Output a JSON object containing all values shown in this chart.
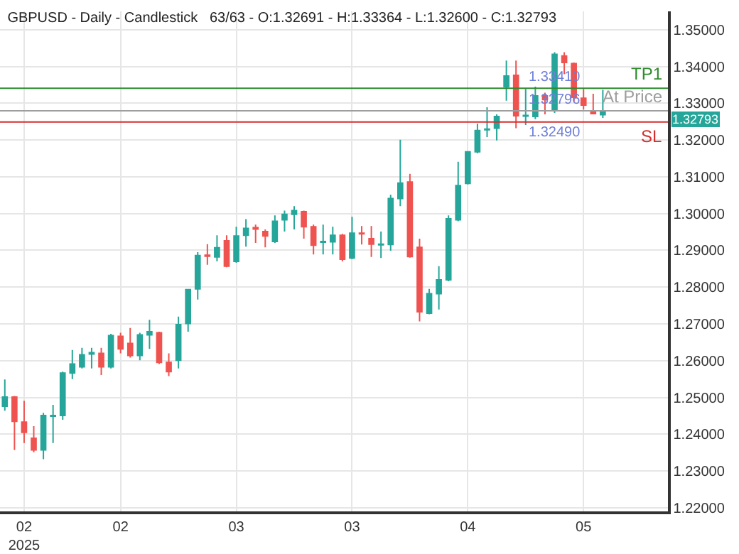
{
  "chart_data": {
    "type": "candlestick",
    "title": "GBPUSD - Daily - Candlestick   63/63 - O:1.32691 - H:1.33364 - L:1.32600 - C:1.32793",
    "categories": [
      null,
      null,
      "02\n2025",
      null,
      null,
      null,
      null,
      null,
      null,
      null,
      null,
      null,
      "02",
      null,
      null,
      null,
      null,
      null,
      null,
      null,
      null,
      null,
      null,
      null,
      "03",
      null,
      null,
      null,
      null,
      null,
      null,
      null,
      null,
      null,
      null,
      null,
      "03",
      null,
      null,
      null,
      null,
      null,
      null,
      null,
      null,
      null,
      null,
      null,
      "04",
      null,
      null,
      null,
      null,
      null,
      null,
      null,
      null,
      null,
      null,
      null,
      "05",
      null,
      null
    ],
    "ohlc": [
      [
        1.2476,
        1.2549,
        1.2464,
        1.2501
      ],
      [
        1.2501,
        1.2504,
        1.2357,
        1.2435
      ],
      [
        1.2433,
        1.2491,
        1.2376,
        1.2405
      ],
      [
        1.2389,
        1.2422,
        1.2351,
        1.2357
      ],
      [
        1.2357,
        1.2458,
        1.2332,
        1.2451
      ],
      [
        1.2449,
        1.248,
        1.2376,
        1.2451
      ],
      [
        1.2451,
        1.257,
        1.2439,
        1.2566
      ],
      [
        1.2566,
        1.2629,
        1.255,
        1.2591
      ],
      [
        1.2583,
        1.2635,
        1.2579,
        1.2616
      ],
      [
        1.2618,
        1.2635,
        1.2579,
        1.2622
      ],
      [
        1.262,
        1.2635,
        1.2561,
        1.2583
      ],
      [
        1.2583,
        1.2673,
        1.2579,
        1.2668
      ],
      [
        1.2666,
        1.2676,
        1.262,
        1.2632
      ],
      [
        1.2647,
        1.2689,
        1.2608,
        1.2614
      ],
      [
        1.2614,
        1.2676,
        1.2601,
        1.267
      ],
      [
        1.267,
        1.2711,
        1.2632,
        1.2679
      ],
      [
        1.2676,
        1.2679,
        1.2591,
        1.2595
      ],
      [
        1.2595,
        1.262,
        1.2558,
        1.257
      ],
      [
        1.2601,
        1.272,
        1.2579,
        1.2698
      ],
      [
        1.2701,
        1.2795,
        1.2679,
        1.2793
      ],
      [
        1.2795,
        1.2895,
        1.2766,
        1.2886
      ],
      [
        1.2887,
        1.2917,
        1.2861,
        1.2884
      ],
      [
        1.2882,
        1.2941,
        1.287,
        1.2907
      ],
      [
        1.2926,
        1.2941,
        1.2854,
        1.2857
      ],
      [
        1.287,
        1.2964,
        1.2866,
        1.2939
      ],
      [
        1.2941,
        1.2985,
        1.291,
        1.296
      ],
      [
        1.2962,
        1.297,
        1.292,
        1.2958
      ],
      [
        1.2951,
        1.2957,
        1.2908,
        1.2939
      ],
      [
        1.2924,
        1.2995,
        1.292,
        1.2979
      ],
      [
        1.2983,
        1.3008,
        1.2951,
        1.2998
      ],
      [
        1.2998,
        1.302,
        1.2957,
        1.3008
      ],
      [
        1.3005,
        1.3008,
        1.2932,
        1.2964
      ],
      [
        1.2964,
        1.297,
        1.2889,
        1.2914
      ],
      [
        1.2922,
        1.297,
        1.2889,
        1.2924
      ],
      [
        1.2923,
        1.2964,
        1.2889,
        1.2941
      ],
      [
        1.2941,
        1.2945,
        1.287,
        1.2876
      ],
      [
        1.2879,
        1.2991,
        1.2876,
        1.2947
      ],
      [
        1.2947,
        1.2966,
        1.2916,
        1.2945
      ],
      [
        1.2932,
        1.2966,
        1.2882,
        1.2917
      ],
      [
        1.2915,
        1.2951,
        1.2879,
        1.2917
      ],
      [
        1.2916,
        1.3051,
        1.2899,
        1.3041
      ],
      [
        1.3041,
        1.3201,
        1.302,
        1.3083
      ],
      [
        1.3086,
        1.3108,
        1.288,
        1.2883
      ],
      [
        1.2908,
        1.2932,
        1.2707,
        1.2733
      ],
      [
        1.2729,
        1.2795,
        1.2726,
        1.2782
      ],
      [
        1.2782,
        1.2857,
        1.2739,
        1.282
      ],
      [
        1.282,
        1.2995,
        1.2816,
        1.2986
      ],
      [
        1.2983,
        1.3141,
        1.2979,
        1.3076
      ],
      [
        1.3082,
        1.317,
        1.3079,
        1.3168
      ],
      [
        1.3168,
        1.3245,
        1.3164,
        1.3226
      ],
      [
        1.3228,
        1.3289,
        1.3208,
        1.323
      ],
      [
        1.3232,
        1.327,
        1.3199,
        1.3264
      ],
      [
        1.3345,
        1.3416,
        1.3307,
        1.3374
      ],
      [
        1.3376,
        1.3416,
        1.3232,
        1.3266
      ],
      [
        1.3265,
        1.3339,
        1.3241,
        1.3267
      ],
      [
        1.3264,
        1.3345,
        1.3257,
        1.332
      ],
      [
        1.332,
        1.3329,
        1.327,
        1.331
      ],
      [
        1.3283,
        1.3439,
        1.3274,
        1.3433
      ],
      [
        1.3429,
        1.3439,
        1.3379,
        1.3411
      ],
      [
        1.3408,
        1.3411,
        1.3304,
        1.3316
      ],
      [
        1.3314,
        1.3339,
        1.3283,
        1.3295
      ],
      [
        1.3279,
        1.3326,
        1.327,
        1.3272
      ],
      [
        1.32691,
        1.33364,
        1.326,
        1.32793
      ]
    ],
    "colors": [
      "#26a69a",
      "#ef5350",
      "#ef5350",
      "#ef5350",
      "#26a69a",
      "#26a69a",
      "#26a69a",
      "#26a69a",
      "#26a69a",
      "#26a69a",
      "#ef5350",
      "#26a69a",
      "#ef5350",
      "#ef5350",
      "#26a69a",
      "#26a69a",
      "#ef5350",
      "#ef5350",
      "#26a69a",
      "#26a69a",
      "#26a69a",
      "#ef5350",
      "#26a69a",
      "#ef5350",
      "#26a69a",
      "#26a69a",
      "#ef5350",
      "#ef5350",
      "#26a69a",
      "#26a69a",
      "#26a69a",
      "#ef5350",
      "#ef5350",
      "#26a69a",
      "#26a69a",
      "#ef5350",
      "#26a69a",
      "#ef5350",
      "#ef5350",
      "#26a69a",
      "#26a69a",
      "#26a69a",
      "#ef5350",
      "#ef5350",
      "#26a69a",
      "#26a69a",
      "#26a69a",
      "#26a69a",
      "#26a69a",
      "#26a69a",
      "#26a69a",
      "#26a69a",
      "#26a69a",
      "#ef5350",
      "#26a69a",
      "#26a69a",
      "#ef5350",
      "#26a69a",
      "#ef5350",
      "#ef5350",
      "#ef5350",
      "#ef5350",
      "#26a69a"
    ],
    "ylim": [
      1.219,
      1.355
    ],
    "yticks": [
      {
        "value": 1.22,
        "label": "1.22000"
      },
      {
        "value": 1.23,
        "label": "1.23000"
      },
      {
        "value": 1.24,
        "label": "1.24000"
      },
      {
        "value": 1.25,
        "label": "1.25000"
      },
      {
        "value": 1.26,
        "label": "1.26000"
      },
      {
        "value": 1.27,
        "label": "1.27000"
      },
      {
        "value": 1.28,
        "label": "1.28000"
      },
      {
        "value": 1.29,
        "label": "1.29000"
      },
      {
        "value": 1.3,
        "label": "1.30000"
      },
      {
        "value": 1.31,
        "label": "1.31000"
      },
      {
        "value": 1.32,
        "label": "1.32000"
      },
      {
        "value": 1.33,
        "label": "1.33000"
      },
      {
        "value": 1.34,
        "label": "1.34000"
      },
      {
        "value": 1.35,
        "label": "1.35000"
      }
    ],
    "grid": true,
    "ref_lines": [
      {
        "axis": "y",
        "value": 1.3341,
        "label": "TP1",
        "color": "#2e8b2e"
      },
      {
        "axis": "y",
        "value": 1.32796,
        "label": "At Price",
        "color": "#9e9e9e"
      },
      {
        "axis": "y",
        "value": 1.3249,
        "label": "SL",
        "color": "#d32f2f"
      }
    ],
    "annotations": [
      {
        "text": "1.33410",
        "x": "05",
        "y": 1.3341
      },
      {
        "text": "1.32796",
        "x": "05",
        "y": 1.32796
      },
      {
        "text": "1.32490",
        "x": "05",
        "y": 1.3249
      },
      "1.32793"
    ]
  }
}
